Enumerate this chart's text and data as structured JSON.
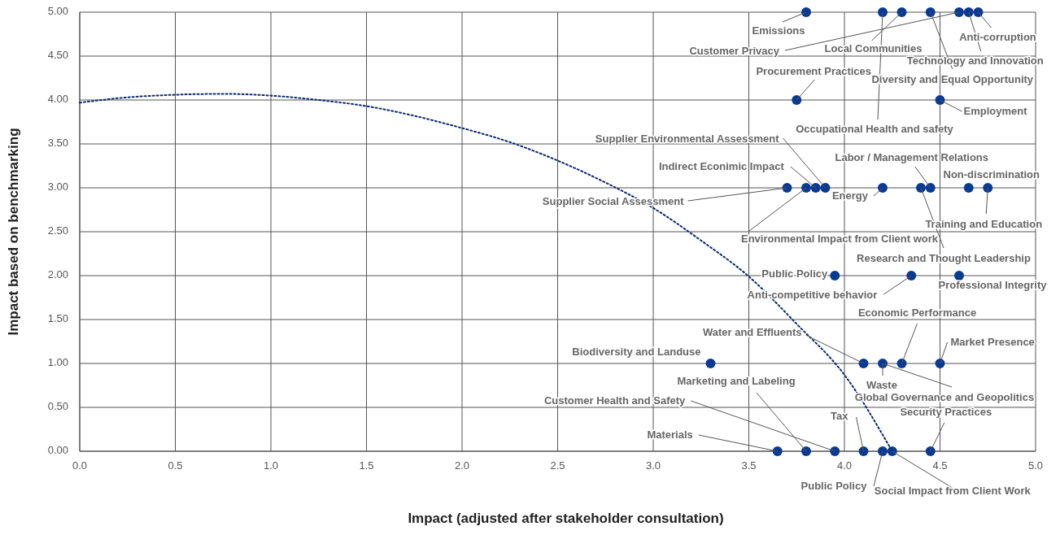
{
  "chart_data": {
    "type": "scatter",
    "xlabel": "Impact (adjusted after stakeholder consultation)",
    "ylabel": "Impact based on benchmarking",
    "xlim": [
      0,
      5
    ],
    "ylim": [
      0,
      5
    ],
    "xticks": [
      {
        "value": 0,
        "label": "0.0"
      },
      0.5,
      {
        "value": 1,
        "label": "1.0"
      },
      1.5,
      {
        "value": 2,
        "label": "2.0"
      },
      2.5,
      {
        "value": 3,
        "label": "3.0"
      },
      3.5,
      {
        "value": 4,
        "label": "4.0"
      },
      4.5,
      {
        "value": 5,
        "label": "5.0"
      }
    ],
    "yticks": [
      {
        "value": 0,
        "label": "0.00"
      },
      {
        "value": 0.5,
        "label": "0.50"
      },
      {
        "value": 1,
        "label": "1.00"
      },
      {
        "value": 1.5,
        "label": "1.50"
      },
      {
        "value": 2,
        "label": "2.00"
      },
      {
        "value": 2.5,
        "label": "2.50"
      },
      {
        "value": 3,
        "label": "3.00"
      },
      {
        "value": 3.5,
        "label": "3.50"
      },
      {
        "value": 4,
        "label": "4.00"
      },
      {
        "value": 4.5,
        "label": "4.50"
      },
      {
        "value": 5,
        "label": "5.00"
      }
    ],
    "grid": true,
    "marker": "circle",
    "series": [
      {
        "color": "#0a3a91",
        "x": [
          3.8,
          4.2,
          4.3,
          4.45,
          4.6,
          4.65,
          4.7,
          3.75,
          4.5,
          3.7,
          3.8,
          3.85,
          3.9,
          4.2,
          4.4,
          4.45,
          4.65,
          4.75,
          3.95,
          4.35,
          4.6,
          3.3,
          4.1,
          4.2,
          4.3,
          4.5,
          3.65,
          3.8,
          3.95,
          4.1,
          4.2,
          4.25,
          4.45
        ],
        "values": [
          5,
          5,
          5,
          5,
          5,
          5,
          5,
          4,
          4,
          3,
          3,
          3,
          3,
          3,
          3,
          3,
          3,
          3,
          2,
          2,
          2,
          1,
          1,
          1,
          1,
          1,
          0,
          0,
          0,
          0,
          0,
          0,
          0
        ]
      },
      {
        "type": "line",
        "color": "#0c2a6b",
        "line_style": "dotted",
        "marker": "none",
        "x": [
          0,
          0.25,
          0.5,
          0.75,
          1,
          1.25,
          1.5,
          1.75,
          2,
          2.25,
          2.5,
          2.75,
          3,
          3.25,
          3.5,
          3.75,
          4,
          4.25
        ],
        "values": [
          3.97,
          4.03,
          4.06,
          4.07,
          4.05,
          4,
          3.93,
          3.82,
          3.68,
          3.52,
          3.31,
          3.06,
          2.77,
          2.4,
          1.99,
          1.45,
          0.87,
          0
        ]
      }
    ],
    "annotations": [
      {
        "text": "Emissions",
        "x": 3.8,
        "y": 5
      },
      {
        "text": "Customer Privacy",
        "x": 4.6,
        "y": 5
      },
      {
        "text": "Local Communities",
        "x": 4.3,
        "y": 5
      },
      {
        "text": "Occupational Health and safety",
        "x": 4.2,
        "y": 5
      },
      {
        "text": "Anti-corruption",
        "x": 4.7,
        "y": 5
      },
      {
        "text": "Technology and Innovation",
        "x": 4.65,
        "y": 5
      },
      {
        "text": "Diversity and Equal Opportunity",
        "x": 4.45,
        "y": 5
      },
      {
        "text": "Procurement Practices",
        "x": 3.75,
        "y": 4
      },
      {
        "text": "Employment",
        "x": 4.5,
        "y": 4
      },
      {
        "text": "Supplier Environmental Assessment",
        "x": 3.9,
        "y": 3
      },
      {
        "text": "Indirect Econimic Impact",
        "x": 3.85,
        "y": 3
      },
      {
        "text": "Supplier Social Assessment",
        "x": 3.7,
        "y": 3
      },
      {
        "text": "Environmental Impact from Client work",
        "x": 3.8,
        "y": 3
      },
      {
        "text": "Energy",
        "x": 4.2,
        "y": 3
      },
      {
        "text": "Labor / Management Relations",
        "x": 4.45,
        "y": 3
      },
      {
        "text": "Research and Thought Leadership",
        "x": 4.4,
        "y": 3
      },
      {
        "text": "Non-discrimination",
        "x": 4.65,
        "y": 3
      },
      {
        "text": "Training and Education",
        "x": 4.75,
        "y": 3
      },
      {
        "text": "Public Policy",
        "x": 3.95,
        "y": 2
      },
      {
        "text": "Anti-competitive behavior",
        "x": 4.35,
        "y": 2
      },
      {
        "text": "Professional Integrity",
        "x": 4.6,
        "y": 2
      },
      {
        "text": "Biodiversity and Landuse",
        "x": 3.3,
        "y": 1
      },
      {
        "text": "Water and Effluents",
        "x": 4.1,
        "y": 1
      },
      {
        "text": "Waste",
        "x": 4.2,
        "y": 1
      },
      {
        "text": "Global Governance and Geopolitics",
        "x": 4.2,
        "y": 1
      },
      {
        "text": "Economic Performance",
        "x": 4.3,
        "y": 1
      },
      {
        "text": "Market Presence",
        "x": 4.5,
        "y": 1
      },
      {
        "text": "Materials",
        "x": 3.65,
        "y": 0
      },
      {
        "text": "Marketing and Labeling",
        "x": 3.8,
        "y": 0
      },
      {
        "text": "Customer Health and Safety",
        "x": 3.95,
        "y": 0
      },
      {
        "text": "Tax",
        "x": 4.1,
        "y": 0
      },
      {
        "text": "Public Policy",
        "x": 4.2,
        "y": 0
      },
      {
        "text": "Social Impact from Client Work",
        "x": 4.25,
        "y": 0
      },
      {
        "text": "Security Practices",
        "x": 4.45,
        "y": 0
      }
    ]
  }
}
